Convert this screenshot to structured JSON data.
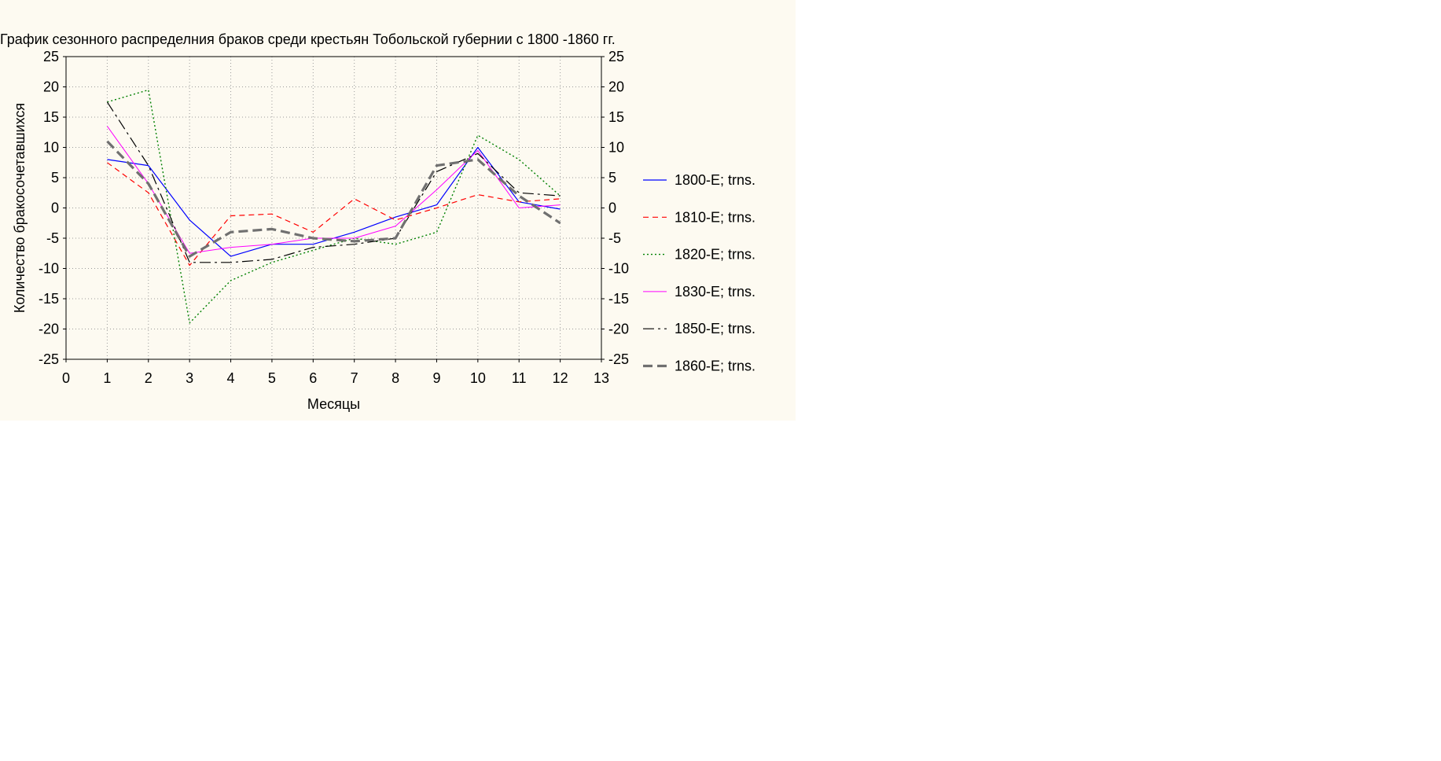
{
  "chart_data": {
    "type": "line",
    "title": "График сезонного распределния браков среди крестьян Тобольской губернии с 1800 -1860 гг.",
    "xlabel": "Месяцы",
    "ylabel": "Количество бракосочетавшихся",
    "xlim": [
      0,
      13
    ],
    "ylim": [
      -25,
      25
    ],
    "x_ticks": [
      0,
      1,
      2,
      3,
      4,
      5,
      6,
      7,
      8,
      9,
      10,
      11,
      12,
      13
    ],
    "y_ticks": [
      25,
      20,
      15,
      10,
      5,
      0,
      -5,
      -10,
      -15,
      -20,
      -25
    ],
    "grid": true,
    "legend_position": "right",
    "x": [
      1,
      2,
      3,
      4,
      5,
      6,
      7,
      8,
      9,
      10,
      11,
      12
    ],
    "series": [
      {
        "name": "1800-E; trns.",
        "color": "#0000ff",
        "dash": "",
        "width": 1.2,
        "values": [
          8,
          7,
          -2,
          -8,
          -6,
          -6,
          -4,
          -1.5,
          0.5,
          10,
          1,
          -0.2
        ]
      },
      {
        "name": "1810-E; trns.",
        "color": "#ff0000",
        "dash": "7,5",
        "width": 1.2,
        "values": [
          7.5,
          2.5,
          -9.5,
          -1.3,
          -1,
          -4,
          1.5,
          -2,
          0,
          2.2,
          1,
          1.5
        ]
      },
      {
        "name": "1820-E; trns.",
        "color": "#008000",
        "dash": "2,3",
        "width": 1.4,
        "values": [
          17.5,
          19.5,
          -19,
          -12,
          -9,
          -7,
          -5,
          -6,
          -4,
          12,
          8,
          2
        ]
      },
      {
        "name": "1830-E; trns.",
        "color": "#ff00ff",
        "dash": "",
        "width": 1.0,
        "values": [
          13.5,
          4,
          -7.5,
          -6.5,
          -6,
          -5,
          -5,
          -3,
          3,
          9.5,
          0,
          0.5
        ]
      },
      {
        "name": "1850-E; trns.",
        "color": "#000000",
        "dash": "14,5,3,5",
        "width": 1.2,
        "values": [
          17.5,
          7,
          -9,
          -9,
          -8.5,
          -6.5,
          -6,
          -5,
          6,
          9,
          2.5,
          2
        ]
      },
      {
        "name": "1860-E; trns.",
        "color": "#707070",
        "dash": "12,6",
        "width": 3.2,
        "values": [
          11,
          4,
          -8,
          -4,
          -3.5,
          -5,
          -5.5,
          -5,
          7,
          8,
          2,
          -2.5
        ]
      }
    ]
  }
}
